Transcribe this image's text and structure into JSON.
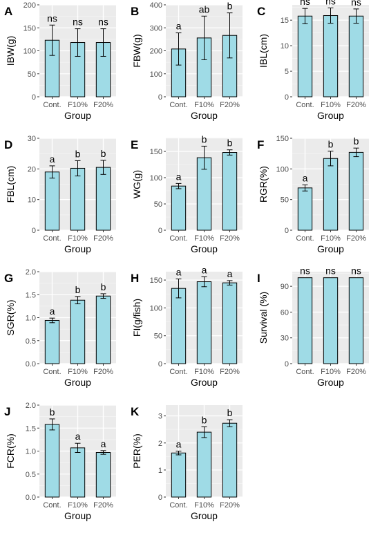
{
  "colors": {
    "bar_fill": "#9fdbe6",
    "panel_bg": "#ebebeb",
    "grid_major": "#ffffff",
    "grid_minor": "#f4f4f4"
  },
  "chart_data": [
    {
      "type": "bar",
      "panel": "A",
      "ylabel": "IBW(g)",
      "xlabel": "Group",
      "categories": [
        "Cont.",
        "F10%",
        "F20%"
      ],
      "values": [
        123,
        118,
        118
      ],
      "errors": [
        33,
        30,
        30
      ],
      "labels": [
        "ns",
        "ns",
        "ns"
      ],
      "ylim": [
        0,
        200
      ],
      "yticks": [
        0,
        50,
        100,
        150,
        200
      ]
    },
    {
      "type": "bar",
      "panel": "B",
      "ylabel": "FBW(g)",
      "xlabel": "Group",
      "categories": [
        "Cont.",
        "F10%",
        "F20%"
      ],
      "values": [
        208,
        256,
        267
      ],
      "errors": [
        70,
        95,
        98
      ],
      "labels": [
        "a",
        "ab",
        "b"
      ],
      "ylim": [
        0,
        400
      ],
      "yticks": [
        0,
        100,
        200,
        300,
        400
      ]
    },
    {
      "type": "bar",
      "panel": "C",
      "ylabel": "IBL(cm)",
      "xlabel": "Group",
      "categories": [
        "Cont.",
        "F10%",
        "F20%"
      ],
      "values": [
        15.8,
        15.9,
        15.8
      ],
      "errors": [
        1.5,
        1.5,
        1.4
      ],
      "labels": [
        "ns",
        "ns",
        "ns"
      ],
      "ylim": [
        0,
        18
      ],
      "yticks": [
        0,
        5,
        10,
        15
      ]
    },
    {
      "type": "bar",
      "panel": "D",
      "ylabel": "FBL(cm)",
      "xlabel": "Group",
      "categories": [
        "Cont.",
        "F10%",
        "F20%"
      ],
      "values": [
        19,
        20.2,
        20.5
      ],
      "errors": [
        2,
        2.5,
        2.3
      ],
      "labels": [
        "a",
        "b",
        "b"
      ],
      "ylim": [
        0,
        30
      ],
      "yticks": [
        0,
        10,
        20,
        30
      ]
    },
    {
      "type": "bar",
      "panel": "E",
      "ylabel": "WG(g)",
      "xlabel": "Group",
      "categories": [
        "Cont.",
        "F10%",
        "F20%"
      ],
      "values": [
        84,
        138,
        148
      ],
      "errors": [
        5,
        22,
        5
      ],
      "labels": [
        "a",
        "b",
        "b"
      ],
      "ylim": [
        0,
        175
      ],
      "yticks": [
        0,
        50,
        100,
        150
      ]
    },
    {
      "type": "bar",
      "panel": "F",
      "ylabel": "RGR(%)",
      "xlabel": "Group",
      "categories": [
        "Cont.",
        "F10%",
        "F20%"
      ],
      "values": [
        69,
        117,
        127
      ],
      "errors": [
        5,
        12,
        7
      ],
      "labels": [
        "a",
        "b",
        "b"
      ],
      "ylim": [
        0,
        150
      ],
      "yticks": [
        0,
        50,
        100,
        150
      ]
    },
    {
      "type": "bar",
      "panel": "G",
      "ylabel": "SGR(%)",
      "xlabel": "Group",
      "categories": [
        "Cont.",
        "F10%",
        "F20%"
      ],
      "values": [
        0.94,
        1.38,
        1.47
      ],
      "errors": [
        0.05,
        0.08,
        0.05
      ],
      "labels": [
        "a",
        "b",
        "b"
      ],
      "ylim": [
        0,
        2.0
      ],
      "yticks": [
        0.0,
        0.5,
        1.0,
        1.5,
        2.0
      ]
    },
    {
      "type": "bar",
      "panel": "H",
      "ylabel": "FI(g/fish)",
      "xlabel": "Group",
      "categories": [
        "Cont.",
        "F10%",
        "F20%"
      ],
      "values": [
        135,
        147,
        145
      ],
      "errors": [
        17,
        9,
        4
      ],
      "labels": [
        "a",
        "a",
        "a"
      ],
      "ylim": [
        0,
        165
      ],
      "yticks": [
        0,
        50,
        100,
        150
      ]
    },
    {
      "type": "bar",
      "panel": "I",
      "ylabel": "Survival (%)",
      "xlabel": "Group",
      "categories": [
        "Cont.",
        "F10%",
        "F20%"
      ],
      "values": [
        100,
        100,
        100
      ],
      "errors": [
        0,
        0,
        0
      ],
      "labels": [
        "ns",
        "ns",
        "ns"
      ],
      "ylim": [
        0,
        107
      ],
      "yticks": [
        0,
        30,
        60,
        90
      ]
    },
    {
      "type": "bar",
      "panel": "J",
      "ylabel": "FCR(%)",
      "xlabel": "Group",
      "categories": [
        "Cont.",
        "F10%",
        "F20%"
      ],
      "values": [
        1.58,
        1.07,
        0.97
      ],
      "errors": [
        0.12,
        0.1,
        0.04
      ],
      "labels": [
        "b",
        "a",
        "a"
      ],
      "ylim": [
        0,
        2.0
      ],
      "yticks": [
        0.0,
        0.5,
        1.0,
        1.5,
        2.0
      ]
    },
    {
      "type": "bar",
      "panel": "K",
      "ylabel": "PER(%)",
      "xlabel": "Group",
      "categories": [
        "Cont.",
        "F10%",
        "F20%"
      ],
      "values": [
        1.63,
        2.4,
        2.73
      ],
      "errors": [
        0.07,
        0.2,
        0.13
      ],
      "labels": [
        "a",
        "b",
        "b"
      ],
      "ylim": [
        0,
        3.4
      ],
      "yticks": [
        0,
        1,
        2,
        3
      ]
    }
  ]
}
